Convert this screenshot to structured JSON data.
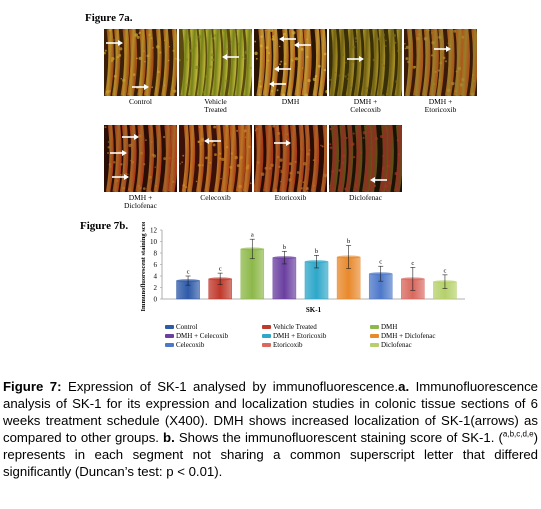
{
  "figure_a": {
    "title": "Figure 7a.",
    "panels": [
      {
        "label": "Control"
      },
      {
        "label": "Vehicle Treated"
      },
      {
        "label": "DMH"
      },
      {
        "label": "DMH + Celecoxib"
      },
      {
        "label": "DMH + Etoricoxib"
      },
      {
        "label": "DMH + Diclofenac"
      },
      {
        "label": "Celecoxib"
      },
      {
        "label": "Etoricoxib"
      },
      {
        "label": "Diclofenac"
      }
    ]
  },
  "figure_b": {
    "title": "Figure 7b.",
    "chart_data": {
      "type": "bar",
      "ylabel": "Immunofluorescent staining score",
      "xlabel": "SK-1",
      "ylim": [
        0,
        12
      ],
      "yticks": [
        0,
        2,
        4,
        6,
        8,
        10,
        12
      ],
      "legend_position": "bottom",
      "series": [
        {
          "name": "Control",
          "value": 3.2,
          "error": 0.8,
          "letter": "c",
          "color": "#2e5aa8"
        },
        {
          "name": "Vehicle Treated",
          "value": 3.5,
          "error": 1.0,
          "letter": "c",
          "color": "#c0392b"
        },
        {
          "name": "DMH",
          "value": 8.7,
          "error": 1.7,
          "letter": "a",
          "color": "#8db84a"
        },
        {
          "name": "DMH + Celecoxib",
          "value": 7.2,
          "error": 1.1,
          "letter": "b",
          "color": "#6a3fa0"
        },
        {
          "name": "DMH + Etoricoxib",
          "value": 6.5,
          "error": 1.1,
          "letter": "b",
          "color": "#2ea7c9"
        },
        {
          "name": "DMH + Diclofenac",
          "value": 7.3,
          "error": 2.0,
          "letter": "b",
          "color": "#e8892c"
        },
        {
          "name": "Celecoxib",
          "value": 4.4,
          "error": 1.3,
          "letter": "c",
          "color": "#4d78c9"
        },
        {
          "name": "Etoricoxib",
          "value": 3.5,
          "error": 2.0,
          "letter": "c",
          "color": "#d9685e"
        },
        {
          "name": "Diclofenac",
          "value": 3.0,
          "error": 1.2,
          "letter": "c",
          "color": "#b5d06a"
        }
      ]
    }
  },
  "caption": {
    "lead": "Figure 7:",
    "text1": " Expression of SK-1 analysed by immunofluorescence.",
    "a": "a.",
    "text2": " Immunofluorescence analysis of SK-1 for its expression and localization studies in colonic tissue sections of 6 weeks treatment schedule (X400). DMH shows increased localization of SK-1(arrows) as compared to other groups. ",
    "b": "b.",
    "text3": " Shows the immunofluorescent staining score of SK-1. (",
    "sup": "a,b,c,d,e",
    "text4": ") represents in each segment not sharing a common superscript letter that differed significantly (Duncan’s test: p < 0.01)."
  },
  "colors": {
    "tissue_orange": "#d4772a",
    "tissue_yellow": "#c9c23a",
    "tissue_red": "#a8331d",
    "background_dark": "#2a1a0a"
  }
}
